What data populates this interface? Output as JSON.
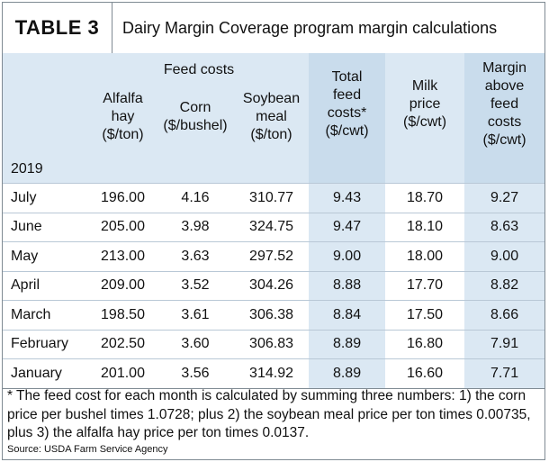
{
  "header": {
    "badge": "TABLE 3",
    "caption": "Dairy Margin Coverage program margin calculations"
  },
  "columns": {
    "feed_costs": "Feed costs",
    "alfalfa": [
      "Alfalfa",
      "hay",
      "($/ton)"
    ],
    "corn": [
      "Corn",
      "($/bushel)"
    ],
    "soybean": [
      "Soybean",
      "meal",
      "($/ton)"
    ],
    "total": [
      "Total",
      "feed",
      "costs*",
      "($/cwt)"
    ],
    "milk": [
      "Milk",
      "price",
      "($/cwt)"
    ],
    "margin": [
      "Margin",
      "above",
      "feed",
      "costs",
      "($/cwt)"
    ]
  },
  "year": "2019",
  "rows": [
    {
      "month": "July",
      "alfalfa": "196.00",
      "corn": "4.16",
      "soybean": "310.77",
      "total": "9.43",
      "milk": "18.70",
      "margin": "9.27"
    },
    {
      "month": "June",
      "alfalfa": "205.00",
      "corn": "3.98",
      "soybean": "324.75",
      "total": "9.47",
      "milk": "18.10",
      "margin": "8.63"
    },
    {
      "month": "May",
      "alfalfa": "213.00",
      "corn": "3.63",
      "soybean": "297.52",
      "total": "9.00",
      "milk": "18.00",
      "margin": "9.00"
    },
    {
      "month": "April",
      "alfalfa": "209.00",
      "corn": "3.52",
      "soybean": "304.26",
      "total": "8.88",
      "milk": "17.70",
      "margin": "8.82"
    },
    {
      "month": "March",
      "alfalfa": "198.50",
      "corn": "3.61",
      "soybean": "306.38",
      "total": "8.84",
      "milk": "17.50",
      "margin": "8.66"
    },
    {
      "month": "February",
      "alfalfa": "202.50",
      "corn": "3.60",
      "soybean": "306.83",
      "total": "8.89",
      "milk": "16.80",
      "margin": "7.91"
    },
    {
      "month": "January",
      "alfalfa": "201.00",
      "corn": "3.56",
      "soybean": "314.92",
      "total": "8.89",
      "milk": "16.60",
      "margin": "7.71"
    }
  ],
  "footnote": "* The feed cost for each month is calculated by summing three numbers: 1) the corn price per bushel times 1.0728; plus 2) the soybean meal price per ton times 0.00735, plus 3) the alfalfa hay price per ton times 0.0137.",
  "source": "Source: USDA Farm Service Agency"
}
